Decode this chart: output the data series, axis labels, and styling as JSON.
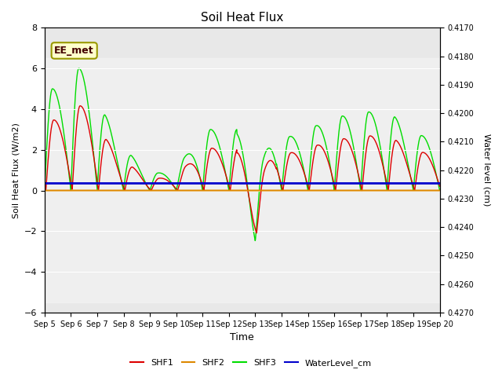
{
  "title": "Soil Heat Flux",
  "ylabel_left": "Soil Heat Flux (W/m2)",
  "ylabel_right": "Water level (cm)",
  "xlabel": "Time",
  "ylim_left": [
    -6,
    8
  ],
  "ylim_right": [
    -0.427,
    -0.417
  ],
  "xlim": [
    0,
    15
  ],
  "x_tick_labels": [
    "Sep 5",
    "Sep 6",
    "Sep 7",
    "Sep 8",
    "Sep 9",
    "Sep 10",
    "Sep 11",
    "Sep 12",
    "Sep 13",
    "Sep 14",
    "Sep 15",
    "Sep 16",
    "Sep 17",
    "Sep 18",
    "Sep 19",
    "Sep 20"
  ],
  "shf1_color": "#dd0000",
  "shf2_color": "#dd8800",
  "shf3_color": "#00dd00",
  "water_color": "#0000cc",
  "background_color": "#ffffff",
  "plot_bg_color": "#e8e8e8",
  "annotation_text": "EE_met",
  "annotation_bg": "#ffffcc",
  "annotation_border": "#999900",
  "legend_labels": [
    "SHF1",
    "SHF2",
    "SHF3",
    "WaterLevel_cm"
  ],
  "water_level_value": 0.35,
  "shf2_value": 0.0,
  "right_ticks": [
    -0.427,
    -0.426,
    -0.425,
    -0.424,
    -0.423,
    -0.422,
    -0.421,
    -0.42,
    -0.419,
    -0.418,
    -0.417
  ],
  "left_ticks": [
    -6,
    -4,
    -2,
    0,
    2,
    4,
    6,
    8
  ]
}
